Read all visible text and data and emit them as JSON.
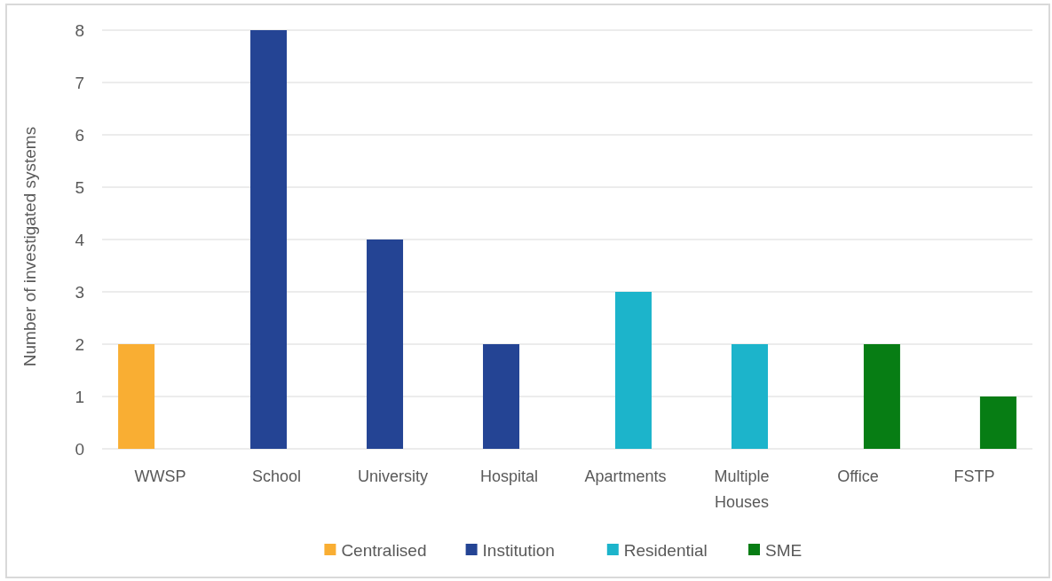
{
  "chart_data": {
    "type": "bar",
    "ylabel": "Number of investigated systems",
    "categories": [
      "WWSP",
      "School",
      "University",
      "Hospital",
      "Apartments",
      "Multiple Houses",
      "Office",
      "FSTP"
    ],
    "series": [
      {
        "name": "Centralised",
        "color": "#f9ae33",
        "values": [
          2,
          null,
          null,
          null,
          null,
          null,
          null,
          null
        ]
      },
      {
        "name": "Institution",
        "color": "#244494",
        "values": [
          null,
          8,
          4,
          2,
          null,
          null,
          null,
          null
        ]
      },
      {
        "name": "Residential",
        "color": "#1cb4cb",
        "values": [
          null,
          null,
          null,
          null,
          3,
          2,
          null,
          null
        ]
      },
      {
        "name": "SME",
        "color": "#077d14",
        "values": [
          null,
          null,
          null,
          null,
          null,
          null,
          2,
          1
        ]
      }
    ],
    "ylim": [
      0,
      8
    ],
    "yticks": [
      0,
      1,
      2,
      3,
      4,
      5,
      6,
      7,
      8
    ],
    "grid": "y",
    "legend": "bottom"
  }
}
